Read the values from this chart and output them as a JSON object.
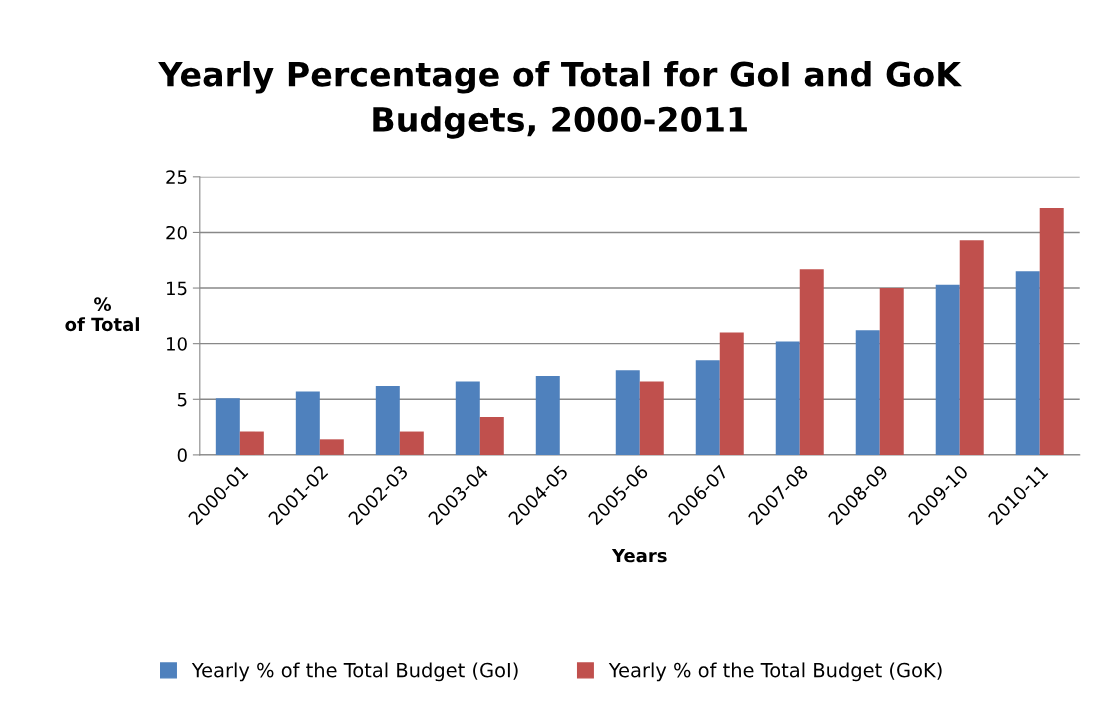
{
  "chart_data": {
    "type": "bar",
    "title": "Yearly Percentage of Total for GoI and GoK\nBudgets, 2000-2011",
    "xlabel": "Years",
    "ylabel": "%\nof Total",
    "categories": [
      "2000-01",
      "2001-02",
      "2002-03",
      "2003-04",
      "2004-05",
      "2005-06",
      "2006-07",
      "2007-08",
      "2008-09",
      "2009-10",
      "2010-11"
    ],
    "series": [
      {
        "name": "Yearly % of the Total Budget (GoI)",
        "color": "#4f81bd",
        "values": [
          5.1,
          5.7,
          6.2,
          6.6,
          7.1,
          7.6,
          8.5,
          10.2,
          11.2,
          15.3,
          16.5
        ]
      },
      {
        "name": "Yearly % of the Total Budget (GoK)",
        "color": "#c0504d",
        "values": [
          2.1,
          1.4,
          2.1,
          3.4,
          null,
          6.6,
          11.0,
          16.7,
          15.0,
          19.3,
          22.2
        ]
      }
    ],
    "ylim": [
      0,
      25
    ],
    "yticks": [
      0,
      5,
      10,
      15,
      20,
      25
    ],
    "grid": "y",
    "legend": "bottom"
  }
}
